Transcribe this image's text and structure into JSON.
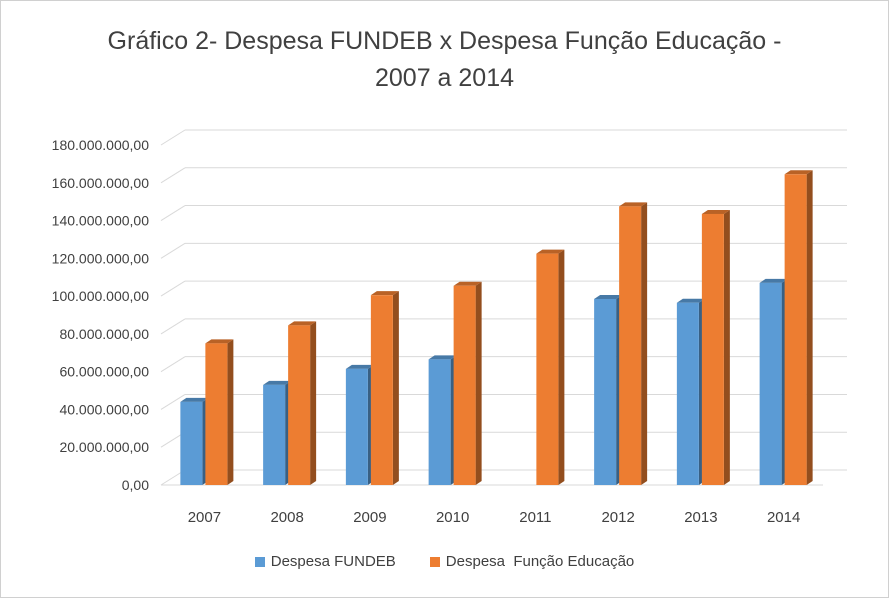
{
  "title": {
    "line1": "Gráfico 2- Despesa FUNDEB x Despesa Função Educação -",
    "line2": "2007 a 2014"
  },
  "legend": {
    "series1": "Despesa FUNDEB",
    "series2": "Despesa  Função Educação"
  },
  "colors": {
    "series1": "#5b9bd5",
    "series2": "#ed7d31"
  },
  "chart_data": {
    "type": "bar",
    "categories": [
      "2007",
      "2008",
      "2009",
      "2010",
      "2011",
      "2012",
      "2013",
      "2014"
    ],
    "series": [
      {
        "name": "Despesa FUNDEB",
        "values": [
          44000000,
          53000000,
          61500000,
          66500000,
          null,
          98500000,
          96500000,
          107000000
        ]
      },
      {
        "name": "Despesa  Função Educação",
        "values": [
          75000000,
          84500000,
          100500000,
          105500000,
          122500000,
          147500000,
          143500000,
          164500000
        ]
      }
    ],
    "yticks": [
      "0,00",
      "20.000.000,00",
      "40.000.000,00",
      "60.000.000,00",
      "80.000.000,00",
      "100.000.000,00",
      "120.000.000,00",
      "140.000.000,00",
      "160.000.000,00",
      "180.000.000,00"
    ],
    "ylim": [
      0,
      180000000
    ],
    "grid": true,
    "legend_position": "bottom"
  }
}
